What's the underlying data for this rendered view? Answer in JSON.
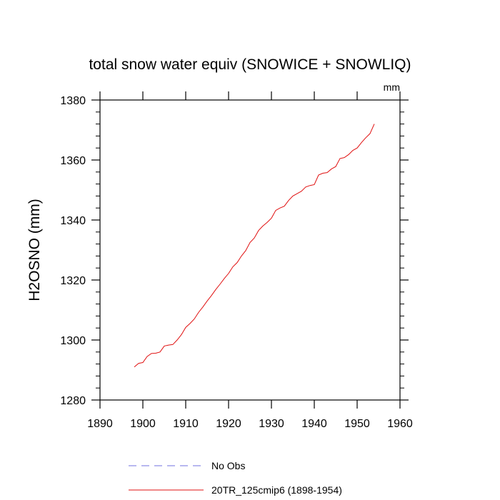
{
  "chart_data": {
    "type": "line",
    "title": "total snow water equiv (SNOWICE + SNOWLIQ)",
    "units_label": "mm",
    "ylabel": "H2OSNO  (mm)",
    "xlabel": "",
    "xlim": [
      1890,
      1960
    ],
    "ylim": [
      1280,
      1380
    ],
    "xticks": [
      1890,
      1900,
      1910,
      1920,
      1930,
      1940,
      1950,
      1960
    ],
    "yticks": [
      1280,
      1300,
      1320,
      1340,
      1360,
      1380
    ],
    "x_tick_labels": [
      "1890",
      "1900",
      "1910",
      "1920",
      "1930",
      "1940",
      "1950",
      "1960"
    ],
    "y_tick_labels": [
      "1280",
      "1300",
      "1320",
      "1340",
      "1360",
      "1380"
    ],
    "legend": [
      {
        "label": "No Obs",
        "color": "#7070e0",
        "dash": true
      },
      {
        "label": "20TR_125cmip6 (1898-1954)",
        "color": "#e01010",
        "dash": false
      }
    ],
    "series": [
      {
        "name": "20TR_125cmip6 (1898-1954)",
        "color": "#e01010",
        "x": [
          1898,
          1899,
          1900,
          1901,
          1902,
          1903,
          1904,
          1905,
          1906,
          1907,
          1908,
          1909,
          1910,
          1911,
          1912,
          1913,
          1914,
          1915,
          1916,
          1917,
          1918,
          1919,
          1920,
          1921,
          1922,
          1923,
          1924,
          1925,
          1926,
          1927,
          1928,
          1929,
          1930,
          1931,
          1932,
          1933,
          1934,
          1935,
          1936,
          1937,
          1938,
          1939,
          1940,
          1941,
          1942,
          1943,
          1944,
          1945,
          1946,
          1947,
          1948,
          1949,
          1950,
          1951,
          1952,
          1953,
          1954
        ],
        "values": [
          1291.0,
          1292.2,
          1292.5,
          1294.5,
          1295.5,
          1295.6,
          1296.0,
          1298.0,
          1298.3,
          1298.5,
          1300.0,
          1301.8,
          1304.2,
          1305.5,
          1307.0,
          1309.2,
          1311.0,
          1313.0,
          1314.8,
          1316.8,
          1318.6,
          1320.5,
          1322.2,
          1324.4,
          1325.8,
          1328.0,
          1329.8,
          1332.5,
          1334.0,
          1336.5,
          1338.0,
          1339.2,
          1340.6,
          1343.2,
          1344.0,
          1344.6,
          1346.5,
          1348.0,
          1348.8,
          1349.6,
          1351.0,
          1351.5,
          1351.8,
          1355.0,
          1355.6,
          1355.8,
          1357.0,
          1357.8,
          1360.5,
          1360.8,
          1361.8,
          1363.2,
          1364.0,
          1365.8,
          1367.4,
          1368.8,
          1372.0
        ]
      }
    ]
  }
}
